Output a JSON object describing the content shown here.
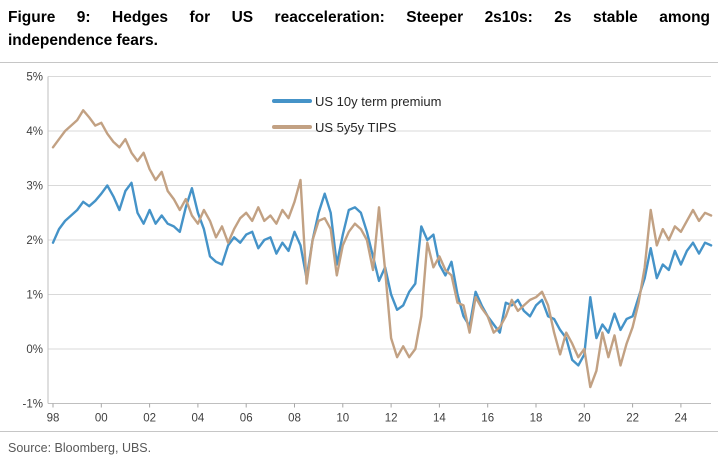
{
  "figure": {
    "title_line1": "Figure 9: Hedges for US reacceleration: Steeper 2s10s: 2s stable among",
    "title_line2": "independence fears.",
    "source": "Source: Bloomberg, UBS."
  },
  "chart_data": {
    "type": "line",
    "title": "Figure 9: Hedges for US reacceleration: Steeper 2s10s: 2s stable among independence fears.",
    "xlabel": "",
    "ylabel": "",
    "unit": "%",
    "grid": "horizontal",
    "legend_position": "top-center-inside",
    "xlim": [
      1997.8,
      2025.5
    ],
    "ylim": [
      -1,
      5
    ],
    "x_tick_labels": [
      "98",
      "00",
      "02",
      "04",
      "06",
      "08",
      "10",
      "12",
      "14",
      "16",
      "18",
      "20",
      "22",
      "24"
    ],
    "x_tick_years": [
      1998,
      2000,
      2002,
      2004,
      2006,
      2008,
      2010,
      2012,
      2014,
      2016,
      2018,
      2020,
      2022,
      2024
    ],
    "y_tick_labels": [
      "5%",
      "4%",
      "3%",
      "2%",
      "1%",
      "0%",
      "-1%"
    ],
    "y_tick_values": [
      5,
      4,
      3,
      2,
      1,
      0,
      -1
    ],
    "x_start": 1998.0,
    "x_step_years": 0.25,
    "series": [
      {
        "name": "US 10y term premium",
        "color": "#4593c8",
        "values": [
          1.95,
          2.2,
          2.35,
          2.45,
          2.55,
          2.7,
          2.62,
          2.72,
          2.85,
          3.0,
          2.8,
          2.55,
          2.9,
          3.05,
          2.5,
          2.3,
          2.55,
          2.3,
          2.45,
          2.3,
          2.25,
          2.15,
          2.6,
          2.95,
          2.5,
          2.2,
          1.7,
          1.6,
          1.55,
          1.9,
          2.05,
          1.95,
          2.1,
          2.15,
          1.85,
          2.0,
          2.05,
          1.75,
          1.95,
          1.8,
          2.15,
          1.9,
          1.3,
          2.0,
          2.5,
          2.85,
          2.5,
          1.55,
          2.1,
          2.55,
          2.6,
          2.5,
          2.15,
          1.7,
          1.25,
          1.5,
          1.0,
          0.72,
          0.8,
          1.05,
          1.2,
          2.25,
          2.0,
          2.1,
          1.55,
          1.35,
          1.6,
          1.0,
          0.6,
          0.42,
          1.05,
          0.8,
          0.6,
          0.45,
          0.3,
          0.85,
          0.8,
          0.9,
          0.7,
          0.6,
          0.8,
          0.9,
          0.6,
          0.55,
          0.35,
          0.2,
          -0.2,
          -0.3,
          -0.1,
          0.95,
          0.2,
          0.45,
          0.3,
          0.65,
          0.35,
          0.55,
          0.6,
          0.95,
          1.3,
          1.85,
          1.3,
          1.55,
          1.45,
          1.8,
          1.55,
          1.8,
          1.95,
          1.75,
          1.95,
          1.9
        ]
      },
      {
        "name": "US 5y5y TIPS",
        "color": "#c2a183",
        "values": [
          3.7,
          3.85,
          4.0,
          4.1,
          4.2,
          4.38,
          4.25,
          4.1,
          4.15,
          3.95,
          3.8,
          3.7,
          3.85,
          3.6,
          3.45,
          3.6,
          3.3,
          3.1,
          3.25,
          2.9,
          2.75,
          2.55,
          2.75,
          2.45,
          2.3,
          2.55,
          2.35,
          2.05,
          2.25,
          1.95,
          2.2,
          2.4,
          2.5,
          2.35,
          2.6,
          2.35,
          2.45,
          2.3,
          2.55,
          2.4,
          2.7,
          3.1,
          1.2,
          2.0,
          2.35,
          2.4,
          2.2,
          1.35,
          1.9,
          2.15,
          2.3,
          2.2,
          2.0,
          1.45,
          2.6,
          1.45,
          0.2,
          -0.15,
          0.05,
          -0.15,
          0.0,
          0.6,
          1.95,
          1.5,
          1.7,
          1.45,
          1.35,
          0.85,
          0.8,
          0.3,
          0.95,
          0.75,
          0.6,
          0.3,
          0.4,
          0.6,
          0.9,
          0.7,
          0.8,
          0.9,
          0.95,
          1.05,
          0.8,
          0.3,
          -0.1,
          0.3,
          0.1,
          -0.15,
          0.0,
          -0.7,
          -0.4,
          0.3,
          -0.15,
          0.25,
          -0.3,
          0.1,
          0.4,
          0.85,
          1.5,
          2.55,
          1.9,
          2.2,
          2.0,
          2.25,
          2.15,
          2.35,
          2.55,
          2.35,
          2.5,
          2.45
        ]
      }
    ]
  }
}
